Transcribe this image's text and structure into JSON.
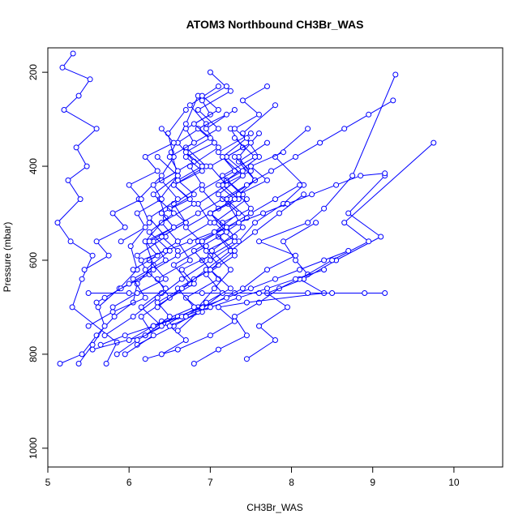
{
  "chart_data": {
    "type": "line",
    "title": "ATOM3 Northbound CH3Br_WAS",
    "xlabel": "CH3Br_WAS",
    "ylabel": "Pressure (mbar)",
    "xlim": [
      5,
      10.6
    ],
    "ylim": [
      1040,
      148
    ],
    "y_reversed": true,
    "grid": false,
    "legend": "none",
    "x_ticks": [
      5,
      6,
      7,
      8,
      9,
      10
    ],
    "y_ticks": [
      200,
      400,
      600,
      800,
      1000
    ],
    "series_color": "#0000ff",
    "marker": "open-circle",
    "series": [
      {
        "x": [
          5.72,
          5.85,
          5.3,
          5.42,
          5.55,
          5.28,
          5.12,
          5.4,
          5.25,
          5.48,
          5.35,
          5.6,
          5.2,
          5.38,
          5.52,
          5.18,
          5.31
        ],
        "y": [
          820,
          775,
          700,
          640,
          590,
          560,
          520,
          470,
          430,
          400,
          360,
          320,
          280,
          250,
          215,
          190,
          160
        ]
      },
      {
        "x": [
          5.15,
          5.42,
          5.6,
          5.82,
          6.05,
          6.1,
          6.3,
          6.2,
          6.45,
          6.38,
          6.6,
          6.52,
          6.7,
          6.85
        ],
        "y": [
          820,
          800,
          760,
          720,
          690,
          650,
          610,
          560,
          510,
          470,
          420,
          370,
          310,
          250
        ]
      },
      {
        "x": [
          5.38,
          5.55,
          5.7,
          5.62,
          5.88,
          6.1,
          6.02,
          6.25,
          6.12,
          6.4,
          6.55,
          6.48,
          6.7
        ],
        "y": [
          820,
          780,
          740,
          700,
          660,
          620,
          570,
          520,
          470,
          420,
          380,
          330,
          280
        ]
      },
      {
        "x": [
          5.55,
          6.2,
          6.48,
          6.85,
          7.05,
          7.25,
          7.02,
          7.4,
          7.22,
          7.55,
          7.35,
          7.6
        ],
        "y": [
          790,
          760,
          735,
          700,
          660,
          620,
          580,
          530,
          480,
          430,
          380,
          330
        ]
      },
      {
        "x": [
          6.8,
          7.1,
          7.45,
          7.3,
          7.6,
          7.85,
          8.2,
          8.05,
          7.9,
          8.3
        ],
        "y": [
          820,
          790,
          760,
          720,
          690,
          660,
          630,
          600,
          560,
          520
        ]
      },
      {
        "x": [
          7.45,
          7.8,
          7.6,
          7.95,
          7.7,
          8.15,
          8.55,
          9.1,
          8.7,
          9.15
        ],
        "y": [
          810,
          770,
          740,
          700,
          670,
          640,
          600,
          550,
          500,
          420
        ]
      },
      {
        "x": [
          6.2,
          6.6,
          7.0,
          7.3,
          7.1,
          7.45,
          8.4,
          8.1,
          8.5,
          8.95,
          8.65,
          9.75
        ],
        "y": [
          810,
          790,
          760,
          730,
          700,
          690,
          670,
          640,
          600,
          560,
          520,
          350
        ]
      },
      {
        "x": [
          5.5,
          6.0,
          6.4,
          6.9,
          7.3,
          7.6,
          8.2,
          8.5,
          8.9,
          9.15
        ],
        "y": [
          670,
          670,
          670,
          670,
          670,
          670,
          670,
          670,
          670,
          670
        ]
      },
      {
        "x": [
          6.1,
          6.55,
          6.95,
          7.4,
          7.7,
          8.05,
          7.6,
          8.2,
          8.4,
          8.75,
          9.28
        ],
        "y": [
          780,
          740,
          700,
          660,
          620,
          590,
          560,
          520,
          490,
          420,
          205
        ]
      },
      {
        "x": [
          5.7,
          6.05,
          6.35,
          6.65,
          7.0,
          7.35,
          7.55,
          7.9,
          8.15,
          7.8,
          8.2
        ],
        "y": [
          760,
          720,
          680,
          640,
          600,
          560,
          520,
          480,
          440,
          380,
          320
        ]
      },
      {
        "x": [
          5.95,
          6.3,
          6.15,
          6.5,
          6.35,
          6.75,
          6.6,
          7.0,
          6.85,
          7.2,
          7.0,
          7.4,
          7.25
        ],
        "y": [
          800,
          760,
          720,
          680,
          640,
          600,
          560,
          520,
          480,
          440,
          400,
          360,
          320
        ]
      },
      {
        "x": [
          6.4,
          6.7,
          6.5,
          6.9,
          6.7,
          7.1,
          6.9,
          7.3,
          7.05,
          7.45,
          7.2,
          7.6,
          7.4,
          7.8
        ],
        "y": [
          800,
          770,
          740,
          710,
          680,
          640,
          600,
          560,
          520,
          470,
          430,
          380,
          330,
          270
        ]
      },
      {
        "x": [
          5.5,
          5.8,
          6.2,
          6.05,
          6.45,
          6.3,
          6.7,
          6.55,
          6.9,
          6.75,
          7.1,
          6.95,
          7.3
        ],
        "y": [
          740,
          710,
          680,
          640,
          600,
          560,
          520,
          480,
          440,
          400,
          360,
          320,
          280
        ]
      },
      {
        "x": [
          5.6,
          5.9,
          6.25,
          6.1,
          6.45,
          6.25,
          6.6,
          6.4,
          6.8,
          6.6,
          6.95,
          6.75,
          7.1
        ],
        "y": [
          690,
          660,
          630,
          590,
          550,
          510,
          470,
          430,
          390,
          350,
          310,
          270,
          230
        ]
      },
      {
        "x": [
          6.6,
          6.85,
          7.15,
          6.95,
          7.3,
          7.1,
          7.45,
          7.2,
          7.55,
          7.35,
          7.7
        ],
        "y": [
          750,
          710,
          670,
          630,
          590,
          550,
          510,
          470,
          430,
          390,
          350
        ]
      },
      {
        "x": [
          6.0,
          6.4,
          6.8,
          6.6,
          7.0,
          6.8,
          7.2,
          7.0,
          7.4,
          7.15,
          7.55,
          7.3
        ],
        "y": [
          770,
          730,
          700,
          660,
          620,
          580,
          540,
          500,
          460,
          420,
          380,
          340
        ]
      },
      {
        "x": [
          5.8,
          6.1,
          6.45,
          6.25,
          6.6,
          6.4,
          6.8,
          6.55,
          6.95,
          6.7,
          7.1,
          6.85,
          7.25,
          7.0
        ],
        "y": [
          700,
          670,
          640,
          600,
          560,
          520,
          480,
          440,
          400,
          360,
          320,
          280,
          240,
          200
        ]
      },
      {
        "x": [
          6.2,
          6.5,
          6.35,
          6.75,
          6.55,
          6.95,
          6.7,
          7.1,
          6.9,
          7.3,
          7.1,
          7.5
        ],
        "y": [
          760,
          720,
          690,
          650,
          610,
          570,
          530,
          490,
          450,
          410,
          370,
          330
        ]
      },
      {
        "x": [
          6.3,
          6.6,
          6.9,
          7.2,
          7.5,
          7.8,
          8.1,
          8.4,
          8.7
        ],
        "y": [
          740,
          720,
          700,
          680,
          660,
          640,
          620,
          600,
          580
        ]
      },
      {
        "x": [
          5.65,
          5.95,
          6.3,
          6.65,
          7.0,
          7.35,
          7.7,
          8.05,
          8.4
        ],
        "y": [
          780,
          760,
          740,
          720,
          700,
          680,
          660,
          640,
          620
        ]
      },
      {
        "x": [
          6.5,
          6.8,
          6.65,
          7.0,
          6.85,
          7.2,
          7.0,
          7.35,
          7.15,
          7.5,
          7.3
        ],
        "y": [
          680,
          650,
          620,
          590,
          560,
          530,
          500,
          470,
          440,
          410,
          380
        ]
      },
      {
        "x": [
          5.9,
          6.2,
          6.1,
          6.4,
          6.3,
          6.6,
          6.5,
          6.8,
          6.7,
          7.0,
          6.9,
          7.2
        ],
        "y": [
          560,
          530,
          500,
          470,
          440,
          410,
          380,
          350,
          320,
          290,
          260,
          230
        ]
      },
      {
        "x": [
          6.05,
          6.35,
          6.2,
          6.55,
          6.4,
          6.75,
          6.55,
          6.9,
          6.7,
          7.05,
          6.85,
          7.2
        ],
        "y": [
          620,
          590,
          560,
          530,
          500,
          470,
          440,
          410,
          380,
          350,
          320,
          290
        ]
      },
      {
        "x": [
          6.8,
          7.1,
          6.95,
          7.3,
          7.15,
          7.5,
          7.35,
          7.7,
          7.5,
          7.9
        ],
        "y": [
          640,
          610,
          580,
          550,
          520,
          490,
          460,
          430,
          400,
          370
        ]
      },
      {
        "x": [
          5.45,
          5.75,
          5.6,
          5.95,
          5.8,
          6.15,
          6.0,
          6.35,
          6.2,
          6.55,
          6.4
        ],
        "y": [
          620,
          590,
          560,
          530,
          500,
          470,
          440,
          410,
          380,
          350,
          320
        ]
      },
      {
        "x": [
          6.15,
          6.45,
          6.75,
          7.05,
          7.35,
          7.65,
          7.95,
          8.25,
          8.55,
          8.85,
          9.15
        ],
        "y": [
          600,
          580,
          560,
          540,
          520,
          500,
          480,
          460,
          440,
          420,
          415
        ]
      },
      {
        "x": [
          6.6,
          6.4,
          6.7,
          6.5,
          6.8,
          6.6,
          6.9,
          6.7,
          7.0,
          6.8,
          7.1,
          6.9
        ],
        "y": [
          580,
          550,
          520,
          490,
          460,
          430,
          400,
          370,
          340,
          310,
          280,
          250
        ]
      },
      {
        "x": [
          6.9,
          7.2,
          7.0,
          7.3,
          7.1,
          7.4,
          7.2,
          7.5,
          7.3,
          7.6,
          7.4,
          7.7
        ],
        "y": [
          560,
          530,
          500,
          470,
          440,
          410,
          380,
          350,
          320,
          290,
          260,
          230
        ]
      },
      {
        "x": [
          6.25,
          6.55,
          6.85,
          7.15,
          7.45,
          7.75,
          8.05,
          8.35,
          8.65,
          8.95,
          9.25
        ],
        "y": [
          560,
          530,
          500,
          470,
          440,
          410,
          380,
          350,
          320,
          290,
          260
        ]
      },
      {
        "x": [
          5.7,
          6.0,
          6.3,
          6.6,
          6.9,
          7.2,
          7.5,
          7.8,
          8.1
        ],
        "y": [
          680,
          650,
          620,
          590,
          560,
          530,
          500,
          470,
          440
        ]
      },
      {
        "x": [
          6.35,
          6.65,
          6.95,
          7.25,
          7.55,
          7.85,
          8.15
        ],
        "y": [
          700,
          660,
          620,
          580,
          540,
          500,
          460
        ]
      },
      {
        "x": [
          5.85,
          6.1,
          6.4,
          6.15,
          6.45,
          6.2,
          6.5,
          6.25,
          6.55,
          6.3,
          6.6,
          6.35
        ],
        "y": [
          800,
          770,
          740,
          700,
          660,
          620,
          580,
          540,
          500,
          460,
          420,
          380
        ]
      },
      {
        "x": [
          6.7,
          6.95,
          7.25,
          7.0,
          7.3,
          7.05,
          7.35,
          7.1,
          7.4,
          7.15,
          7.45
        ],
        "y": [
          720,
          690,
          660,
          620,
          580,
          540,
          500,
          460,
          420,
          380,
          340
        ]
      }
    ]
  }
}
